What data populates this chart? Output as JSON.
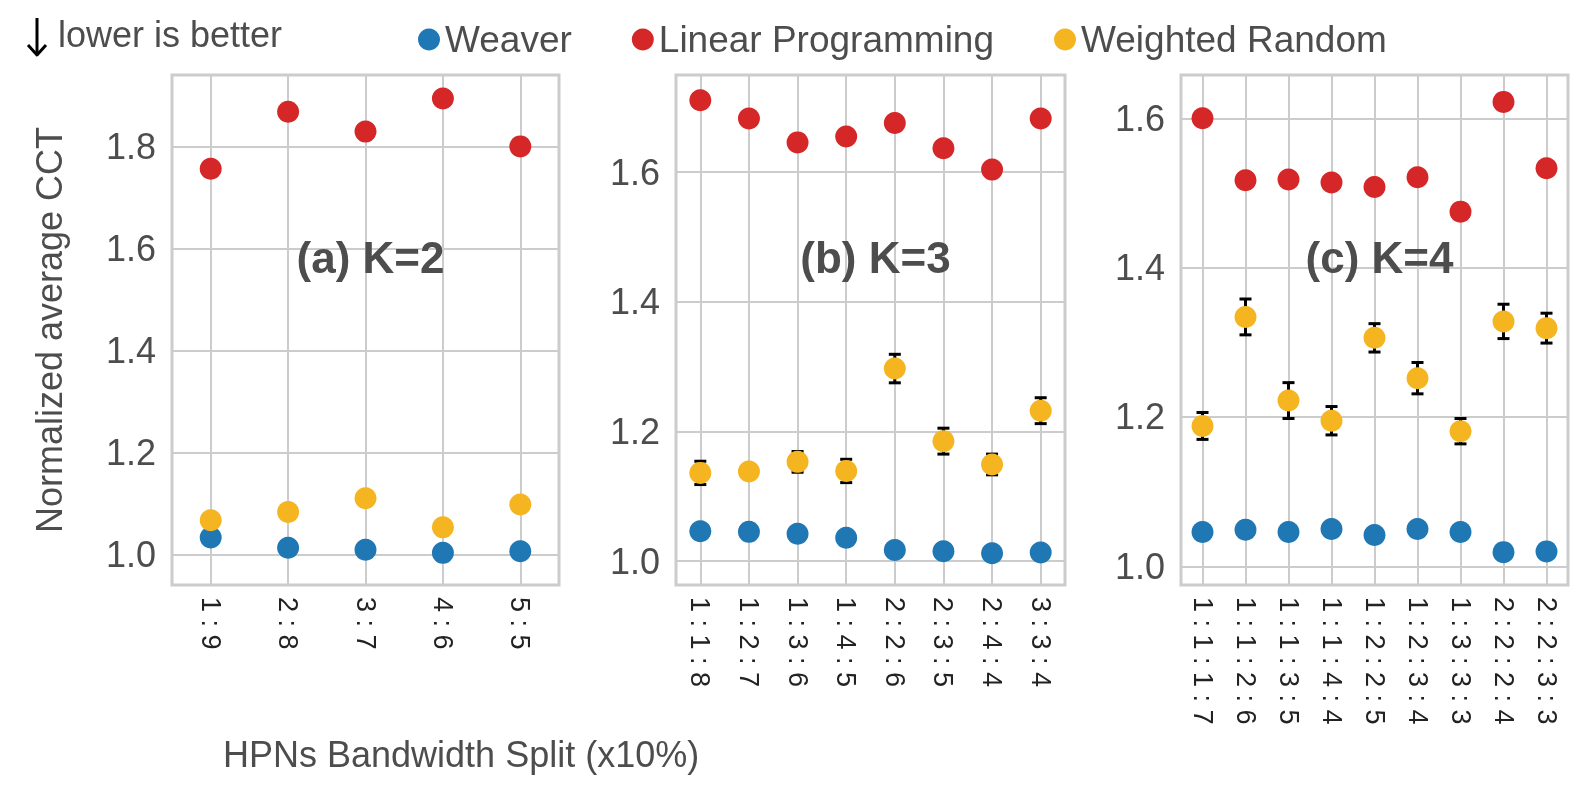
{
  "chart_data": [
    {
      "type": "scatter",
      "title": "(a) K=2",
      "ylabel": "Normalized average CCT",
      "annotations": [
        "lower is better"
      ],
      "legend": "top",
      "grid": true,
      "marker": "circle",
      "categories": [
        "1 : 9",
        "2 : 8",
        "3 : 7",
        "4 : 6",
        "5 : 5"
      ],
      "ylim": [
        0.94,
        1.94
      ],
      "yticks": [
        {
          "value": 1,
          "label": "1.0"
        },
        {
          "value": 1.2,
          "label": "1.2"
        },
        {
          "value": 1.4,
          "label": "1.4"
        },
        {
          "value": 1.6,
          "label": "1.6"
        },
        {
          "value": 1.8,
          "label": "1.8"
        }
      ],
      "series": [
        {
          "name": "Weaver",
          "color": "#1f77b4",
          "values": [
            1.033,
            1.013,
            1.009,
            1.003,
            1.006
          ]
        },
        {
          "name": "Linear Programming",
          "color": "#d62728",
          "values": [
            1.756,
            1.868,
            1.829,
            1.894,
            1.8
          ]
        },
        {
          "name": "Weighted Random",
          "color": "#f5b520",
          "values": [
            1.067,
            1.083,
            1.11,
            1.053,
            1.098
          ]
        }
      ]
    },
    {
      "type": "scatter",
      "title": "(b) K=3",
      "xlabel": "HPNs Bandwidth Split (x10%)",
      "grid": true,
      "marker": "circle",
      "categories": [
        "1 : 1 : 8",
        "1 : 2 : 7",
        "1 : 3 : 6",
        "1 : 4 : 5",
        "2 : 2 : 6",
        "2 : 3 : 5",
        "2 : 4 : 4",
        "3 : 3 : 4"
      ],
      "ylim": [
        0.963,
        1.75
      ],
      "yticks": [
        {
          "value": 1,
          "label": "1.0"
        },
        {
          "value": 1.2,
          "label": "1.2"
        },
        {
          "value": 1.4,
          "label": "1.4"
        },
        {
          "value": 1.6,
          "label": "1.6"
        }
      ],
      "series": [
        {
          "color": "#1f77b4",
          "values": [
            1.046,
            1.045,
            1.042,
            1.036,
            1.017,
            1.015,
            1.012,
            1.013
          ]
        },
        {
          "color": "#d62728",
          "values": [
            1.711,
            1.683,
            1.646,
            1.655,
            1.676,
            1.637,
            1.604,
            1.683
          ]
        },
        {
          "color": "#f5b520",
          "values": [
            1.136,
            1.138,
            1.153,
            1.139,
            1.297,
            1.185,
            1.149,
            1.232
          ],
          "errors": [
            0.018,
            null,
            0.016,
            0.018,
            0.022,
            0.02,
            0.016,
            0.02
          ]
        }
      ]
    },
    {
      "type": "scatter",
      "title": "(c) K=4",
      "grid": true,
      "marker": "circle",
      "categories": [
        "1 : 1 : 1 : 7",
        "1 : 1 : 2 : 6",
        "1 : 1 : 3 : 5",
        "1 : 1 : 4 : 4",
        "1 : 2 : 2 : 5",
        "1 : 2 : 3 : 4",
        "1 : 3 : 3 : 3",
        "2 : 2 : 2 : 4",
        "2 : 2 : 3 : 3"
      ],
      "ylim": [
        0.975,
        1.658
      ],
      "yticks": [
        {
          "value": 1,
          "label": "1.0"
        },
        {
          "value": 1.2,
          "label": "1.2"
        },
        {
          "value": 1.4,
          "label": "1.4"
        },
        {
          "value": 1.6,
          "label": "1.6"
        }
      ],
      "series": [
        {
          "color": "#1f77b4",
          "values": [
            1.046,
            1.049,
            1.046,
            1.05,
            1.042,
            1.05,
            1.046,
            1.019,
            1.02
          ]
        },
        {
          "color": "#d62728",
          "values": [
            1.6,
            1.517,
            1.518,
            1.514,
            1.508,
            1.521,
            1.475,
            1.622,
            1.533
          ]
        },
        {
          "color": "#f5b520",
          "values": [
            1.188,
            1.334,
            1.222,
            1.195,
            1.306,
            1.252,
            1.181,
            1.328,
            1.319
          ],
          "errors": [
            0.018,
            0.024,
            0.024,
            0.019,
            0.019,
            0.021,
            0.017,
            0.023,
            0.02
          ]
        }
      ]
    }
  ]
}
